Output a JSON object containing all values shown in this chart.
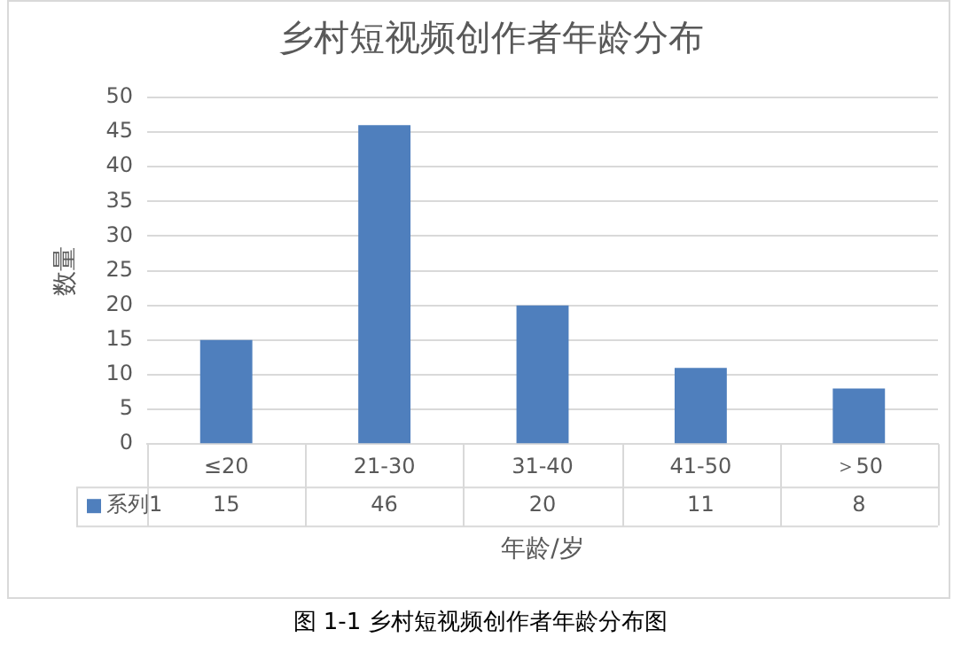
{
  "chart_data": {
    "type": "bar",
    "title": "乡村短视频创作者年龄分布",
    "ylabel": "数量",
    "xlabel": "年龄/岁",
    "categories": [
      "≤20",
      "21-30",
      "31-40",
      "41-50",
      "＞50"
    ],
    "series": [
      {
        "name": "系列1",
        "color": "#4f7fbd",
        "values": [
          15,
          46,
          20,
          11,
          8
        ]
      }
    ],
    "ylim": [
      0,
      50
    ],
    "yticks": [
      0,
      5,
      10,
      15,
      20,
      25,
      30,
      35,
      40,
      45,
      50
    ],
    "grid": "y",
    "legend": "bottom",
    "data_labels": true,
    "annotations": [
      "图 1-1 乡村短视频创作者年龄分布图"
    ]
  }
}
